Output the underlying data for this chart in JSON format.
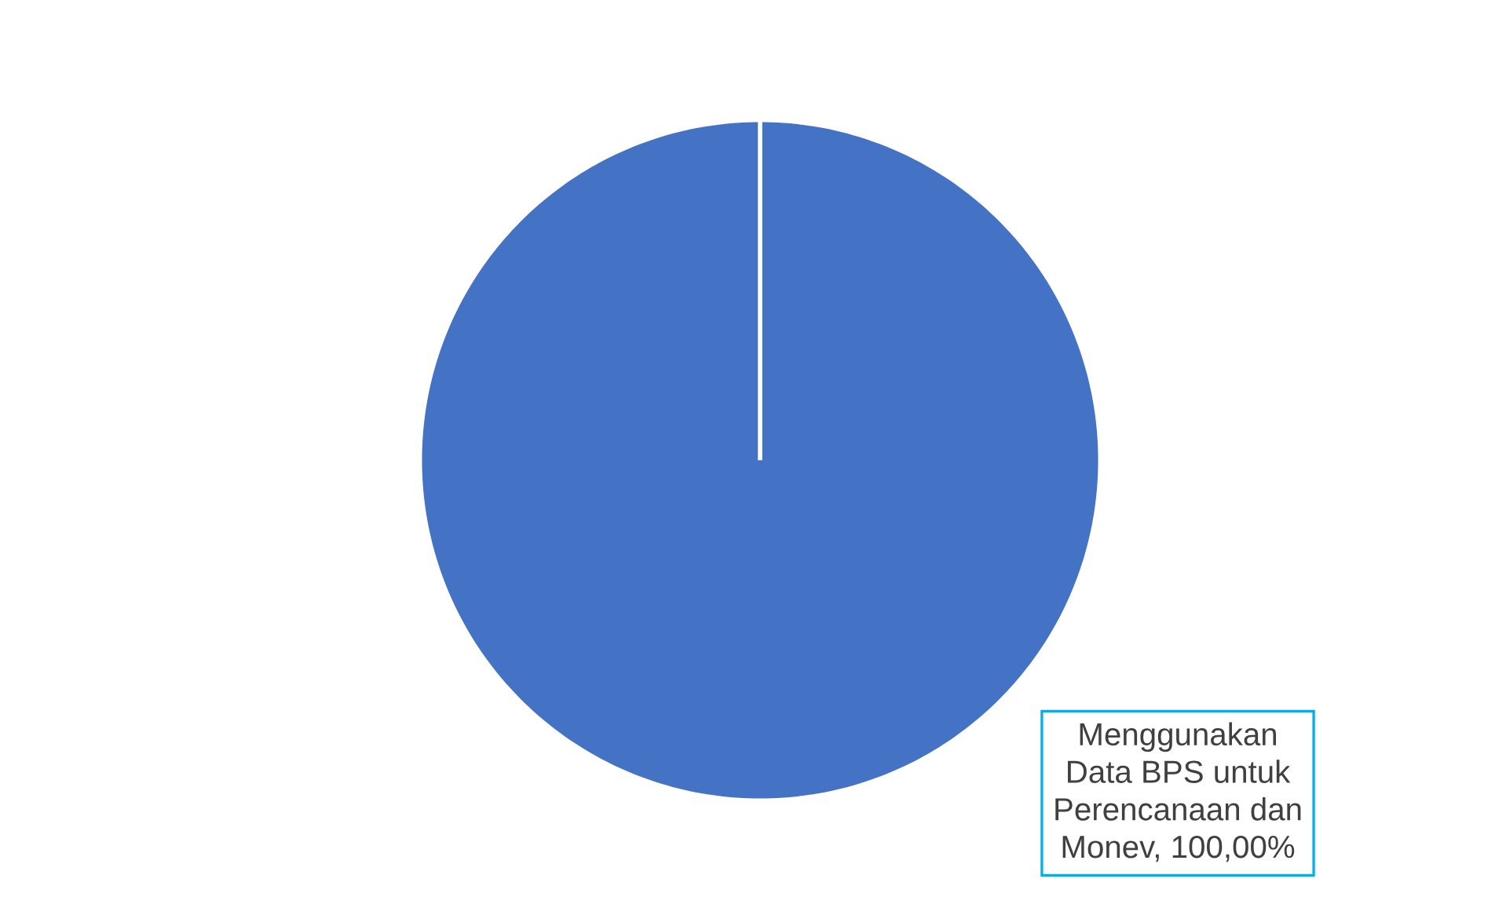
{
  "chart_data": {
    "type": "pie",
    "categories": [
      "Menggunakan Data BPS untuk Perencanaan dan Monev"
    ],
    "values": [
      100
    ],
    "colors": [
      "#4472c4"
    ],
    "value_labels": [
      "100,00%"
    ]
  }
}
